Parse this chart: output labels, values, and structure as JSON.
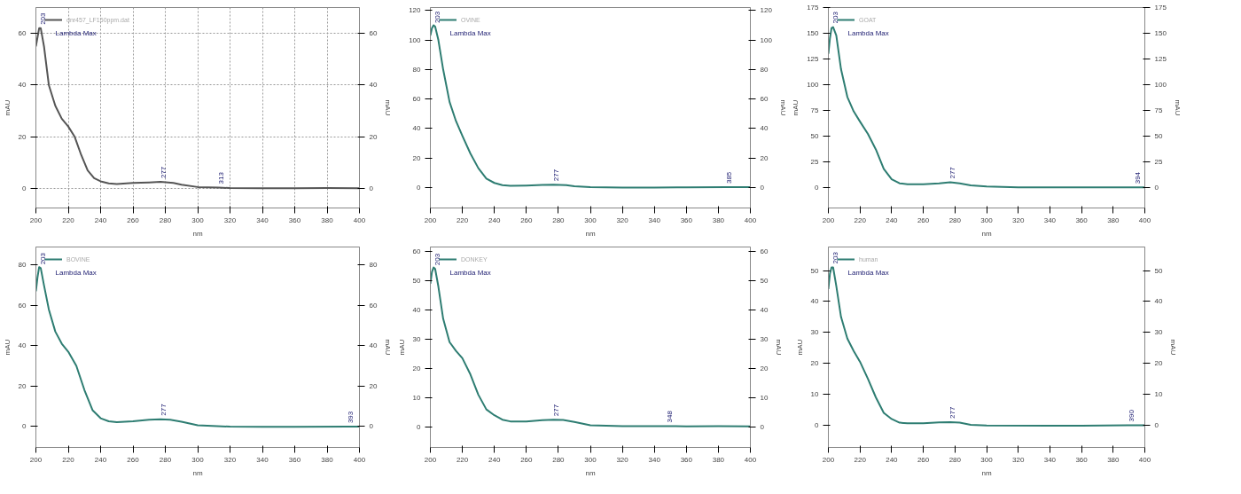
{
  "chart_data": [
    {
      "type": "line",
      "xlabel": "nm",
      "ylabel": "mAU",
      "y2label": "mAU",
      "xlim": [
        200,
        400
      ],
      "xticks": [
        200,
        220,
        240,
        260,
        280,
        300,
        320,
        340,
        360,
        380,
        400
      ],
      "ylim": [
        -7.5,
        70
      ],
      "yticks": [
        0,
        20,
        40,
        60
      ],
      "y2lim": [
        -7.5,
        70
      ],
      "y2ticks": [
        0,
        20,
        40,
        60
      ],
      "grid": true,
      "legend": "top left",
      "x": [
        200,
        202,
        203,
        205,
        208,
        212,
        216,
        220,
        224,
        228,
        232,
        236,
        240,
        245,
        250,
        260,
        270,
        277,
        285,
        290,
        300,
        313,
        320,
        340,
        360,
        380,
        400
      ],
      "series": [
        {
          "name": "dnr457_LF150ppm.dat",
          "color": "#555555",
          "values": [
            55,
            62,
            62,
            55,
            40,
            32,
            27,
            24,
            20,
            13,
            7,
            4,
            2.8,
            2,
            1.8,
            2.2,
            2.4,
            2.6,
            2.2,
            1.5,
            0.6,
            0.4,
            0.2,
            0.1,
            0.1,
            0.2,
            0.1
          ]
        }
      ],
      "annotations": [
        "Lambda Max",
        {
          "text": "203",
          "x": 203,
          "y": 62
        },
        {
          "text": "277",
          "x": 277,
          "y": 2.6
        },
        {
          "text": "313",
          "x": 313,
          "y": 0.4
        }
      ]
    },
    {
      "type": "line",
      "xlabel": "nm",
      "y2label": "mAU",
      "xlim": [
        200,
        400
      ],
      "xticks": [
        200,
        220,
        240,
        260,
        280,
        300,
        320,
        340,
        360,
        380,
        400
      ],
      "ylim": [
        -14,
        122
      ],
      "yticks": [
        0,
        20,
        40,
        60,
        80,
        100,
        120
      ],
      "y2lim": [
        -14,
        122
      ],
      "y2ticks": [
        0,
        20,
        40,
        60,
        80,
        100,
        120
      ],
      "legend": "top left",
      "x": [
        200,
        201,
        202,
        203,
        205,
        208,
        212,
        216,
        220,
        225,
        230,
        235,
        240,
        245,
        250,
        260,
        270,
        277,
        285,
        290,
        300,
        320,
        340,
        360,
        385,
        400
      ],
      "series": [
        {
          "name": "OVINE",
          "color": "#2e7d72",
          "values": [
            103,
            108,
            110,
            109,
            100,
            80,
            58,
            45,
            35,
            23,
            13,
            6,
            3,
            1.5,
            1,
            1.2,
            1.6,
            1.8,
            1.5,
            0.8,
            0.2,
            -0.1,
            -0.1,
            0,
            0.1,
            0.1
          ]
        }
      ],
      "annotations": [
        "Lambda Max",
        {
          "text": "203",
          "x": 203,
          "y": 109
        },
        {
          "text": "277",
          "x": 277,
          "y": 1.8
        },
        {
          "text": "385",
          "x": 385,
          "y": 0.1
        }
      ]
    },
    {
      "type": "line",
      "xlabel": "nm",
      "ylabel": "mAU",
      "y2label": "mAU",
      "xlim": [
        200,
        400
      ],
      "xticks": [
        200,
        220,
        240,
        260,
        280,
        300,
        320,
        340,
        360,
        380,
        400
      ],
      "ylim": [
        -20,
        175
      ],
      "yticks": [
        0,
        25,
        50,
        75,
        100,
        125,
        150,
        175
      ],
      "y2lim": [
        -20,
        175
      ],
      "y2ticks": [
        0,
        25,
        50,
        75,
        100,
        125,
        150,
        175
      ],
      "legend": "top left",
      "x": [
        200,
        201,
        202,
        203,
        205,
        208,
        212,
        216,
        220,
        225,
        230,
        235,
        240,
        245,
        250,
        260,
        270,
        277,
        283,
        290,
        300,
        320,
        340,
        360,
        394,
        400
      ],
      "series": [
        {
          "name": "GOAT",
          "color": "#2e7d72",
          "values": [
            130,
            145,
            155,
            156,
            148,
            115,
            88,
            74,
            64,
            52,
            37,
            18,
            8,
            4,
            3,
            3,
            4,
            5,
            4,
            2,
            1,
            0,
            0,
            0,
            0,
            0
          ]
        }
      ],
      "annotations": [
        "Lambda Max",
        {
          "text": "203",
          "x": 203,
          "y": 156
        },
        {
          "text": "277",
          "x": 277,
          "y": 5
        },
        {
          "text": "394",
          "x": 394,
          "y": 0
        }
      ]
    },
    {
      "type": "line",
      "xlabel": "nm",
      "ylabel": "mAU",
      "y2label": "mAU",
      "xlim": [
        200,
        400
      ],
      "xticks": [
        200,
        220,
        240,
        260,
        280,
        300,
        320,
        340,
        360,
        380,
        400
      ],
      "ylim": [
        -10.5,
        89
      ],
      "yticks": [
        0,
        20,
        40,
        60,
        80
      ],
      "y2lim": [
        -10.5,
        89
      ],
      "y2ticks": [
        0,
        20,
        40,
        60,
        80
      ],
      "legend": "top left",
      "x": [
        200,
        201,
        202,
        203,
        205,
        208,
        212,
        216,
        220,
        225,
        230,
        235,
        240,
        245,
        250,
        260,
        270,
        277,
        283,
        290,
        300,
        320,
        340,
        360,
        393,
        400
      ],
      "series": [
        {
          "name": "BOVINE",
          "color": "#2e7d72",
          "values": [
            67,
            74,
            79,
            78.5,
            70,
            58,
            47,
            41,
            37,
            30,
            18,
            8,
            4,
            2.5,
            2,
            2.5,
            3.3,
            3.5,
            3.3,
            2.3,
            0.5,
            -0.2,
            -0.3,
            -0.3,
            -0.2,
            -0.2
          ]
        }
      ],
      "annotations": [
        "Lambda Max",
        {
          "text": "203",
          "x": 203,
          "y": 78.5
        },
        {
          "text": "277",
          "x": 277,
          "y": 3.5
        },
        {
          "text": "393",
          "x": 393,
          "y": -0.2
        }
      ]
    },
    {
      "type": "line",
      "xlabel": "nm",
      "ylabel": "mAU",
      "y2label": "mAU",
      "xlim": [
        200,
        400
      ],
      "xticks": [
        200,
        220,
        240,
        260,
        280,
        300,
        320,
        340,
        360,
        380,
        400
      ],
      "ylim": [
        -7,
        61.5
      ],
      "yticks": [
        0,
        10,
        20,
        30,
        40,
        50,
        60
      ],
      "y2lim": [
        -7,
        61.5
      ],
      "y2ticks": [
        0,
        10,
        20,
        30,
        40,
        50,
        60
      ],
      "legend": "top left",
      "x": [
        200,
        201,
        202,
        203,
        205,
        208,
        212,
        216,
        220,
        225,
        230,
        235,
        240,
        245,
        250,
        260,
        270,
        277,
        283,
        290,
        300,
        320,
        348,
        360,
        380,
        400
      ],
      "series": [
        {
          "name": "DONKEY",
          "color": "#2e7d72",
          "values": [
            49,
            53,
            54.5,
            54,
            48,
            37,
            29,
            26,
            23.5,
            18,
            11,
            6,
            4,
            2.5,
            1.9,
            1.9,
            2.3,
            2.5,
            2.4,
            1.7,
            0.6,
            0.3,
            0.3,
            0.2,
            0.3,
            0.2
          ]
        }
      ],
      "annotations": [
        "Lambda Max",
        {
          "text": "203",
          "x": 203,
          "y": 54
        },
        {
          "text": "277",
          "x": 277,
          "y": 2.5
        },
        {
          "text": "348",
          "x": 348,
          "y": 0.3
        }
      ]
    },
    {
      "type": "line",
      "xlabel": "nm",
      "ylabel": "mAU",
      "y2label": "mAU",
      "xlim": [
        200,
        400
      ],
      "xticks": [
        200,
        220,
        240,
        260,
        280,
        300,
        320,
        340,
        360,
        380,
        400
      ],
      "ylim": [
        -7.2,
        57.6
      ],
      "yticks": [
        0,
        10,
        20,
        30,
        40,
        50
      ],
      "y2lim": [
        -7.2,
        57.6
      ],
      "y2ticks": [
        0,
        10,
        20,
        30,
        40,
        50
      ],
      "legend": "top left",
      "x": [
        200,
        201,
        202,
        203,
        205,
        208,
        212,
        216,
        220,
        225,
        230,
        235,
        240,
        245,
        250,
        260,
        270,
        277,
        283,
        290,
        300,
        340,
        360,
        390,
        400
      ],
      "series": [
        {
          "name": "human",
          "color": "#2e7d72",
          "values": [
            44,
            49,
            51,
            51,
            45,
            35,
            28,
            24,
            20.5,
            15,
            9,
            4,
            2,
            0.8,
            0.6,
            0.6,
            0.9,
            1,
            0.8,
            0.1,
            -0.1,
            -0.2,
            -0.2,
            0,
            0
          ]
        }
      ],
      "annotations": [
        "Lambda Max",
        {
          "text": "203",
          "x": 203,
          "y": 51
        },
        {
          "text": "277",
          "x": 277,
          "y": 1
        },
        {
          "text": "390",
          "x": 390,
          "y": 0
        }
      ]
    }
  ]
}
